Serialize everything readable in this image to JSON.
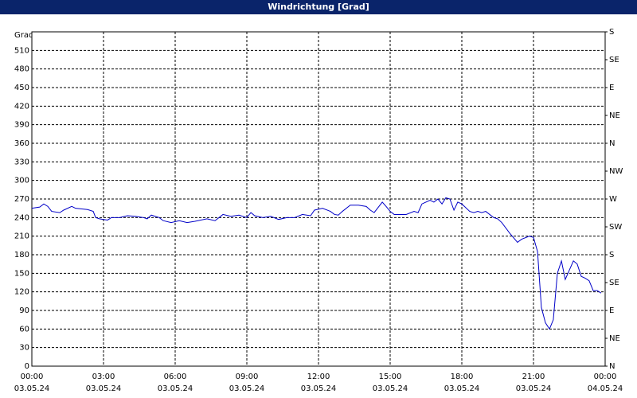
{
  "chart_data": {
    "type": "line",
    "title": "Windrichtung [Grad]",
    "ylabel": "Grad",
    "xlim": [
      0,
      24
    ],
    "ylim": [
      0,
      540
    ],
    "y2lim": [
      0,
      540
    ],
    "grid": true,
    "xticks": [
      {
        "value": 0,
        "label": "00:00",
        "date": "03.05.24"
      },
      {
        "value": 3,
        "label": "03:00",
        "date": "03.05.24"
      },
      {
        "value": 6,
        "label": "06:00",
        "date": "03.05.24"
      },
      {
        "value": 9,
        "label": "09:00",
        "date": "03.05.24"
      },
      {
        "value": 12,
        "label": "12:00",
        "date": "03.05.24"
      },
      {
        "value": 15,
        "label": "15:00",
        "date": "03.05.24"
      },
      {
        "value": 18,
        "label": "18:00",
        "date": "03.05.24"
      },
      {
        "value": 21,
        "label": "21:00",
        "date": "03.05.24"
      },
      {
        "value": 24,
        "label": "00:00",
        "date": "04.05.24"
      }
    ],
    "yticks": [
      0,
      30,
      60,
      90,
      120,
      150,
      180,
      210,
      240,
      270,
      300,
      330,
      360,
      390,
      420,
      450,
      480,
      510
    ],
    "y2ticks": [
      {
        "value": 0,
        "label": "N"
      },
      {
        "value": 45,
        "label": "NE"
      },
      {
        "value": 90,
        "label": "E"
      },
      {
        "value": 135,
        "label": "SE"
      },
      {
        "value": 180,
        "label": "S"
      },
      {
        "value": 225,
        "label": "SW"
      },
      {
        "value": 270,
        "label": "W"
      },
      {
        "value": 315,
        "label": "NW"
      },
      {
        "value": 360,
        "label": "N"
      },
      {
        "value": 405,
        "label": "NE"
      },
      {
        "value": 450,
        "label": "E"
      },
      {
        "value": 495,
        "label": "SE"
      },
      {
        "value": 540,
        "label": "S"
      }
    ],
    "series": [
      {
        "color": "#0000c8",
        "x": [
          0,
          0.33,
          0.5,
          0.67,
          0.83,
          1.17,
          1.33,
          1.67,
          1.83,
          2.33,
          2.57,
          2.67,
          2.83,
          3.17,
          3.33,
          3.67,
          4,
          4.33,
          4.67,
          4.83,
          5,
          5.33,
          5.5,
          5.83,
          6.17,
          6.5,
          6.83,
          7.33,
          7.67,
          8,
          8.33,
          8.67,
          9,
          9.17,
          9.33,
          9.67,
          10,
          10.33,
          10.67,
          11,
          11.33,
          11.67,
          11.83,
          12.17,
          12.5,
          12.67,
          12.83,
          13,
          13.33,
          13.67,
          14,
          14.17,
          14.33,
          14.67,
          14.83,
          15,
          15.17,
          15.33,
          15.67,
          16,
          16.17,
          16.33,
          16.67,
          16.83,
          17,
          17.17,
          17.33,
          17.5,
          17.67,
          17.83,
          18,
          18.33,
          18.5,
          18.67,
          18.83,
          19,
          19.33,
          19.5,
          19.67,
          20,
          20.33,
          20.5,
          20.83,
          21,
          21.17,
          21.33,
          21.5,
          21.67,
          21.83,
          22,
          22.17,
          22.33,
          22.5,
          22.67,
          22.83,
          23,
          23.17,
          23.33,
          23.5,
          23.67,
          23.83
        ],
        "values": [
          255,
          257,
          262,
          258,
          250,
          248,
          252,
          258,
          255,
          253,
          250,
          240,
          238,
          236,
          240,
          240,
          243,
          242,
          240,
          238,
          244,
          240,
          235,
          232,
          235,
          232,
          234,
          238,
          235,
          245,
          242,
          244,
          240,
          248,
          243,
          240,
          242,
          237,
          240,
          240,
          245,
          243,
          252,
          255,
          250,
          245,
          244,
          250,
          260,
          260,
          258,
          252,
          248,
          265,
          258,
          250,
          245,
          245,
          245,
          250,
          248,
          262,
          268,
          265,
          270,
          262,
          272,
          270,
          252,
          265,
          262,
          250,
          248,
          250,
          248,
          250,
          240,
          238,
          232,
          215,
          200,
          205,
          210,
          208,
          185,
          95,
          70,
          60,
          75,
          150,
          170,
          140,
          155,
          170,
          165,
          145,
          142,
          138,
          122,
          122,
          118
        ]
      }
    ]
  }
}
